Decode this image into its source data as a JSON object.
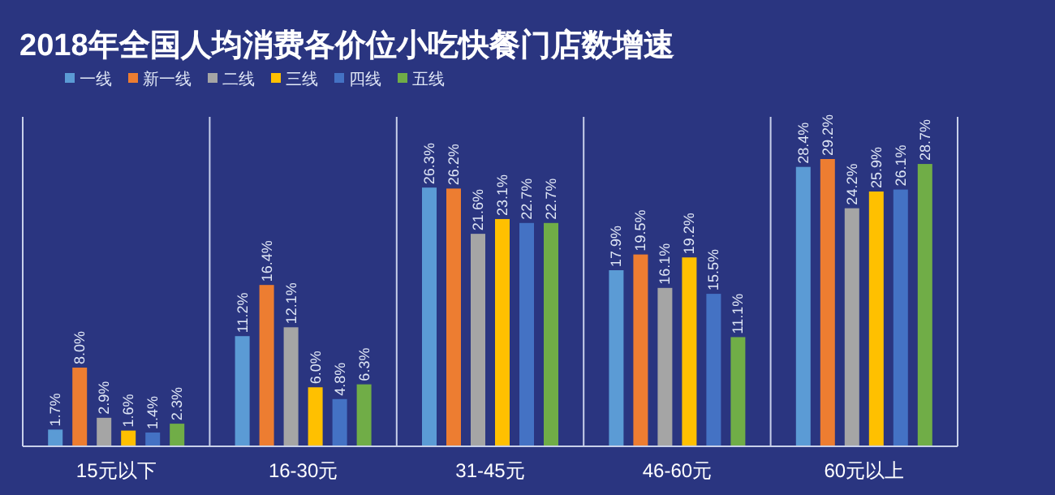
{
  "chart_data": {
    "type": "bar",
    "title": "2018年全国人均消费各价位小吃快餐门店数增速",
    "categories": [
      "15元以下",
      "16-30元",
      "31-45元",
      "46-60元",
      "60元以上"
    ],
    "series": [
      {
        "name": "一线",
        "color": "#5b9bd5",
        "values": [
          1.7,
          11.2,
          26.3,
          17.9,
          28.4
        ],
        "value_labels": [
          "1.7%",
          "11.2%",
          "26.3%",
          "17.9%",
          "28.4%"
        ]
      },
      {
        "name": "新一线",
        "color": "#ed7d31",
        "values": [
          8.0,
          16.4,
          26.2,
          19.5,
          29.2
        ],
        "value_labels": [
          "8.0%",
          "16.4%",
          "26.2%",
          "19.5%",
          "29.2%"
        ]
      },
      {
        "name": "二线",
        "color": "#a5a5a5",
        "values": [
          2.9,
          12.1,
          21.6,
          16.1,
          24.2
        ],
        "value_labels": [
          "2.9%",
          "12.1%",
          "21.6%",
          "16.1%",
          "24.2%"
        ]
      },
      {
        "name": "三线",
        "color": "#ffc000",
        "values": [
          1.6,
          6.0,
          23.1,
          19.2,
          25.9
        ],
        "value_labels": [
          "1.6%",
          "6.0%",
          "23.1%",
          "19.2%",
          "25.9%"
        ]
      },
      {
        "name": "四线",
        "color": "#4472c4",
        "values": [
          1.4,
          4.8,
          22.7,
          15.5,
          26.1
        ],
        "value_labels": [
          "1.4%",
          "4.8%",
          "22.7%",
          "15.5%",
          "26.1%"
        ]
      },
      {
        "name": "五线",
        "color": "#70ad47",
        "values": [
          2.3,
          6.3,
          22.7,
          11.1,
          28.7
        ],
        "value_labels": [
          "2.3%",
          "6.3%",
          "22.7%",
          "11.1%",
          "28.7%"
        ]
      }
    ],
    "legend": "top left"
  }
}
